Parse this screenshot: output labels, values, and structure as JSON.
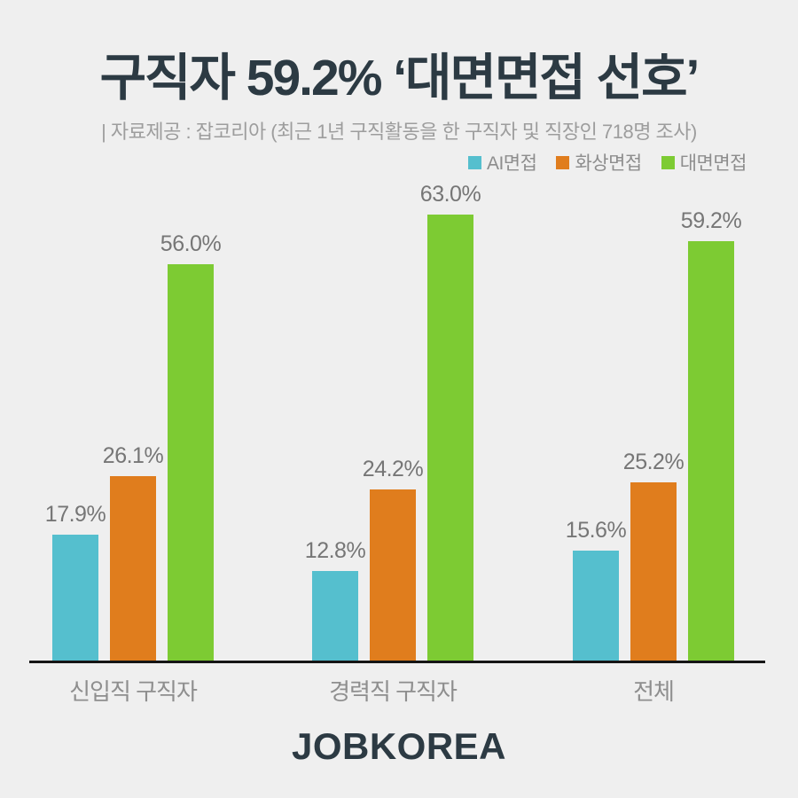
{
  "page": {
    "title": "구직자 59.2% ‘대면면접 선호’",
    "subtitle": "| 자료제공 : 잡코리아 (최근 1년 구직활동을 한 구직자 및 직장인 718명 조사)",
    "logo": "JOBKOREA",
    "background_color": "#EFEFEF",
    "heading_color": "#2C3A43"
  },
  "chart_data": {
    "type": "bar",
    "title": "구직자 59.2% ‘대면면접 선호’",
    "categories": [
      "신입직 구직자",
      "경력직 구직자",
      "전체"
    ],
    "series": [
      {
        "name": "AI면접",
        "color": "#55BFCE",
        "values": [
          17.9,
          12.8,
          15.6
        ]
      },
      {
        "name": "화상면접",
        "color": "#E07D1D",
        "values": [
          26.1,
          24.2,
          25.2
        ]
      },
      {
        "name": "대면면접",
        "color": "#7DCB33",
        "values": [
          56.0,
          63.0,
          59.2
        ]
      }
    ],
    "value_labels": [
      [
        "17.9%",
        "12.8%",
        "15.6%"
      ],
      [
        "26.1%",
        "24.2%",
        "25.2%"
      ],
      [
        "56.0%",
        "63.0%",
        "59.2%"
      ]
    ],
    "value_suffix": "%",
    "xlabel": "",
    "ylabel": "",
    "ylim": [
      0,
      68
    ],
    "grid": false,
    "legend_position": "top-right",
    "axis_line_color": "#151515",
    "label_color": "#767676"
  }
}
